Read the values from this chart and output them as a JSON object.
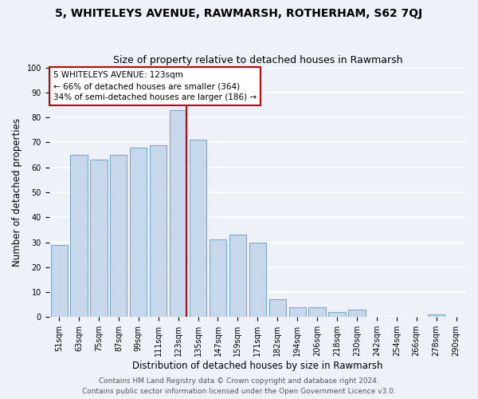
{
  "title": "5, WHITELEYS AVENUE, RAWMARSH, ROTHERHAM, S62 7QJ",
  "subtitle": "Size of property relative to detached houses in Rawmarsh",
  "xlabel": "Distribution of detached houses by size in Rawmarsh",
  "ylabel": "Number of detached properties",
  "bar_labels": [
    "51sqm",
    "63sqm",
    "75sqm",
    "87sqm",
    "99sqm",
    "111sqm",
    "123sqm",
    "135sqm",
    "147sqm",
    "159sqm",
    "171sqm",
    "182sqm",
    "194sqm",
    "206sqm",
    "218sqm",
    "230sqm",
    "242sqm",
    "254sqm",
    "266sqm",
    "278sqm",
    "290sqm"
  ],
  "bar_values": [
    29,
    65,
    63,
    65,
    68,
    69,
    83,
    71,
    31,
    33,
    30,
    7,
    4,
    4,
    2,
    3,
    0,
    0,
    0,
    1,
    0
  ],
  "bar_color": "#c8d8ec",
  "bar_edge_color": "#7aaaca",
  "highlight_index": 6,
  "highlight_line_color": "#cc0000",
  "annotation_title": "5 WHITELEYS AVENUE: 123sqm",
  "annotation_line1": "← 66% of detached houses are smaller (364)",
  "annotation_line2": "34% of semi-detached houses are larger (186) →",
  "annotation_box_color": "#ffffff",
  "annotation_box_edge": "#cc0000",
  "ylim": [
    0,
    100
  ],
  "yticks": [
    0,
    10,
    20,
    30,
    40,
    50,
    60,
    70,
    80,
    90,
    100
  ],
  "footer1": "Contains HM Land Registry data © Crown copyright and database right 2024.",
  "footer2": "Contains public sector information licensed under the Open Government Licence v3.0.",
  "background_color": "#eef2f8",
  "grid_color": "#ffffff",
  "title_fontsize": 10,
  "subtitle_fontsize": 9,
  "axis_label_fontsize": 8.5,
  "tick_fontsize": 7,
  "annotation_fontsize": 7.5,
  "footer_fontsize": 6.5
}
